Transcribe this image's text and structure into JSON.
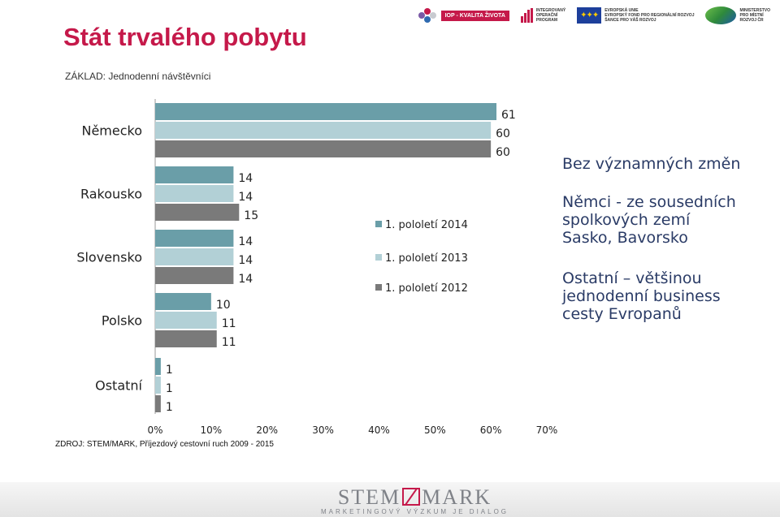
{
  "slide": {
    "title": "Stát trvalého pobytu",
    "basis": "ZÁKLAD: Jednodenní návštěvníci",
    "source": "ZDROJ: STEM/MARK, Příjezdový cestovní ruch 2009 - 2015"
  },
  "logos": {
    "iop": "IOP - KVALITA ŽIVOTA",
    "iop_program": [
      "INTEGROVANÝ",
      "OPERAČNÍ",
      "PROGRAM"
    ],
    "eu": [
      "EVROPSKÁ UNIE",
      "EVROPSKÝ FOND PRO REGIONÁLNÍ ROZVOJ",
      "ŠANCE PRO VÁŠ ROZVOJ"
    ],
    "mmr": [
      "MINISTERSTVO",
      "PRO MÍSTNÍ",
      "ROZVOJ ČR"
    ]
  },
  "notes": [
    "Bez významných změn",
    "Němci - ze sousedních spolkových zemí Sasko, Bavorsko",
    "Ostatní – většinou jednodenní business cesty Evropanů"
  ],
  "footer": {
    "brand_left": "STEM",
    "brand_right": "MARK",
    "tagline": "MARKETINGOVÝ VÝZKUM JE DIALOG"
  },
  "colors": {
    "title": "#c5194a",
    "series_2014": "#6a9ea8",
    "series_2013": "#b2d0d6",
    "series_2012": "#7a7a7a"
  },
  "chart_data": {
    "type": "bar",
    "orientation": "horizontal",
    "categories": [
      "Německo",
      "Rakousko",
      "Slovensko",
      "Polsko",
      "Ostatní"
    ],
    "series": [
      {
        "name": "1. pololetí 2014",
        "values": [
          61,
          14,
          14,
          10,
          1
        ]
      },
      {
        "name": "1. pololetí 2013",
        "values": [
          60,
          14,
          14,
          11,
          1
        ]
      },
      {
        "name": "1. pololetí 2012",
        "values": [
          60,
          15,
          14,
          11,
          1
        ]
      }
    ],
    "xticks": [
      "0%",
      "10%",
      "20%",
      "30%",
      "40%",
      "50%",
      "60%",
      "70%"
    ],
    "xlim": [
      0,
      70
    ],
    "legend": "center",
    "grid": false
  }
}
